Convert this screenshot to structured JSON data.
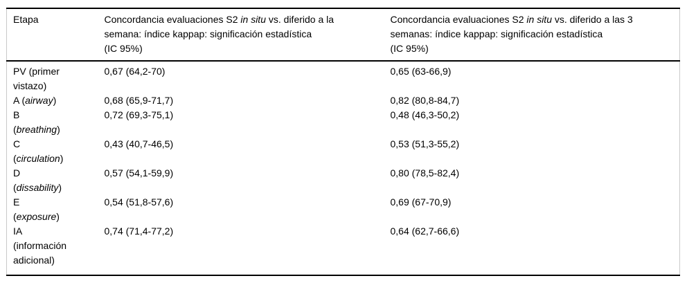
{
  "colors": {
    "background": "#ffffff",
    "text": "#000000",
    "horizontal_rule": "#000000",
    "side_border": "#c9c9c9"
  },
  "table": {
    "headers": [
      {
        "name": "etapa",
        "lines": [
          [
            {
              "t": "Etapa"
            }
          ]
        ]
      },
      {
        "name": "week1",
        "lines": [
          [
            {
              "t": "Concordancia evaluaciones S2 "
            },
            {
              "t": "in situ",
              "i": true
            },
            {
              "t": " vs. diferido a la"
            }
          ],
          [
            {
              "t": "semana: índice kappap: significación estadística"
            }
          ],
          [
            {
              "t": "(IC 95%)"
            }
          ]
        ]
      },
      {
        "name": "week3",
        "lines": [
          [
            {
              "t": "Concordancia evaluaciones S2 "
            },
            {
              "t": "in situ",
              "i": true
            },
            {
              "t": " vs. diferido a las 3"
            }
          ],
          [
            {
              "t": "semanas: índice kappap: significación estadística"
            }
          ],
          [
            {
              "t": "(IC 95%)"
            }
          ]
        ]
      }
    ],
    "rows": [
      {
        "stage": [
          [
            {
              "t": "PV (primer"
            }
          ],
          [
            {
              "t": "vistazo)"
            }
          ]
        ],
        "week1": "0,67 (64,2-70)",
        "week3": "0,65 (63-66,9)"
      },
      {
        "stage": [
          [
            {
              "t": "A ("
            },
            {
              "t": "airway",
              "i": true
            },
            {
              "t": ")"
            }
          ]
        ],
        "week1": "0,68 (65,9-71,7)",
        "week3": "0,82 (80,8-84,7)"
      },
      {
        "stage": [
          [
            {
              "t": "B"
            }
          ],
          [
            {
              "t": "("
            },
            {
              "t": "breathing",
              "i": true
            },
            {
              "t": ")"
            }
          ]
        ],
        "week1": "0,72 (69,3-75,1)",
        "week3": "0,48 (46,3-50,2)"
      },
      {
        "stage": [
          [
            {
              "t": "C"
            }
          ],
          [
            {
              "t": "("
            },
            {
              "t": "circulation",
              "i": true
            },
            {
              "t": ")"
            }
          ]
        ],
        "week1": "0,43 (40,7-46,5)",
        "week3": "0,53 (51,3-55,2)"
      },
      {
        "stage": [
          [
            {
              "t": "D"
            }
          ],
          [
            {
              "t": "("
            },
            {
              "t": "dissability",
              "i": true
            },
            {
              "t": ")"
            }
          ]
        ],
        "week1": "0,57 (54,1-59,9)",
        "week3": "0,80 (78,5-82,4)"
      },
      {
        "stage": [
          [
            {
              "t": "E"
            }
          ],
          [
            {
              "t": "("
            },
            {
              "t": "exposure",
              "i": true
            },
            {
              "t": ")"
            }
          ]
        ],
        "week1": "0,54 (51,8-57,6)",
        "week3": "0,69 (67-70,9)"
      },
      {
        "stage": [
          [
            {
              "t": "IA"
            }
          ],
          [
            {
              "t": "(información"
            }
          ],
          [
            {
              "t": "adicional)"
            }
          ]
        ],
        "week1": "0,74 (71,4-77,2)",
        "week3": "0,64 (62,7-66,6)"
      }
    ]
  },
  "chart_data": {
    "type": "table",
    "columns": [
      "Etapa",
      "Concordancia evaluaciones S2 in situ vs. diferido a la semana: índice kappap: significación estadística (IC 95%)",
      "Concordancia evaluaciones S2 in situ vs. diferido a las 3 semanas: índice kappap: significación estadística (IC 95%)"
    ],
    "rows": [
      [
        "PV (primer vistazo)",
        "0,67 (64,2-70)",
        "0,65 (63-66,9)"
      ],
      [
        "A (airway)",
        "0,68 (65,9-71,7)",
        "0,82 (80,8-84,7)"
      ],
      [
        "B (breathing)",
        "0,72 (69,3-75,1)",
        "0,48 (46,3-50,2)"
      ],
      [
        "C (circulation)",
        "0,43 (40,7-46,5)",
        "0,53 (51,3-55,2)"
      ],
      [
        "D (dissability)",
        "0,57 (54,1-59,9)",
        "0,80 (78,5-82,4)"
      ],
      [
        "E (exposure)",
        "0,54 (51,8-57,6)",
        "0,69 (67-70,9)"
      ],
      [
        "IA (información adicional)",
        "0,74 (71,4-77,2)",
        "0,64 (62,7-66,6)"
      ]
    ]
  }
}
